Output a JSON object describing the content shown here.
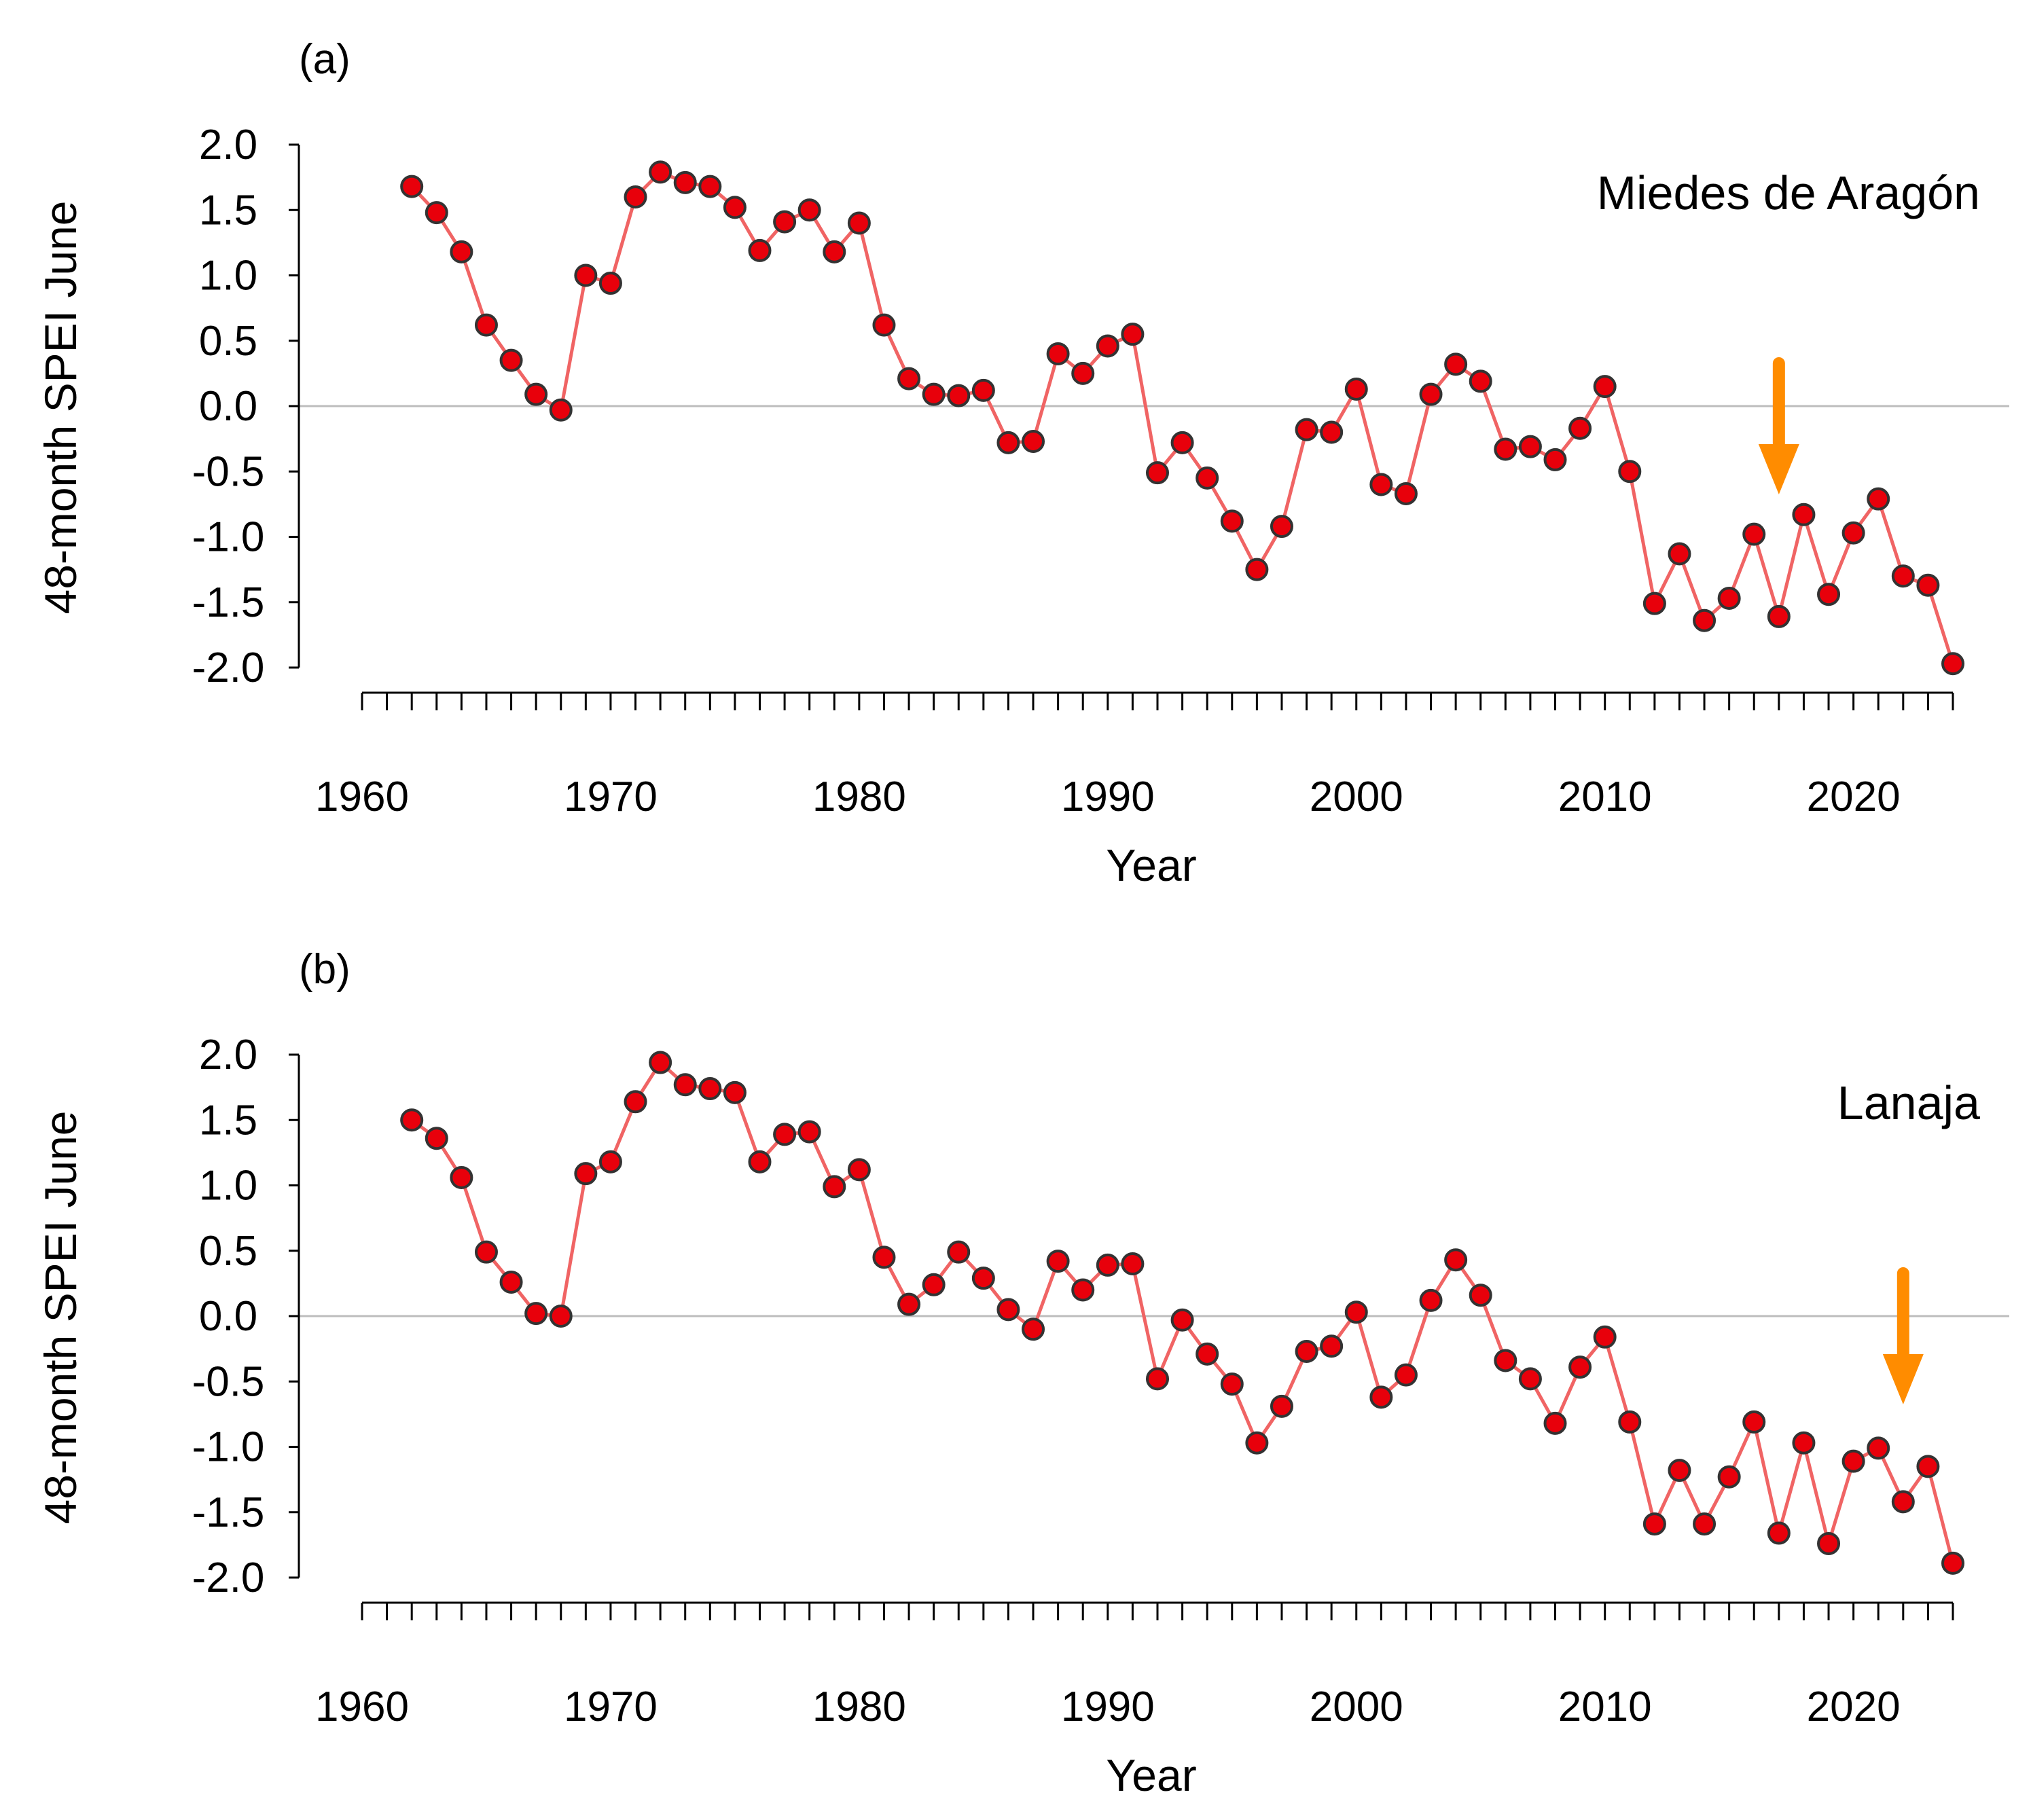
{
  "colors": {
    "line": "#f06464",
    "marker_fill": "#e8000b",
    "marker_edge": "#333333",
    "zero_line": "#bdbdbd",
    "arrow": "#ff8c00",
    "axis": "#000000"
  },
  "chart_data": [
    {
      "type": "line",
      "panel_label": "(a)",
      "site": "Miedes de Aragón",
      "xlabel": "Year",
      "ylabel": "48-month SPEI June",
      "ylim": [
        -2.0,
        2.0
      ],
      "yticks": [
        "-2.0",
        "-1.5",
        "-1.0",
        "-0.5",
        "0.0",
        "0.5",
        "1.0",
        "1.5",
        "2.0"
      ],
      "xlim": [
        1960,
        2024
      ],
      "xticks": [
        "1960",
        "1970",
        "1980",
        "1990",
        "2000",
        "2010",
        "2020"
      ],
      "reference_line_y": 0,
      "arrow_year": 2017,
      "x": [
        1962,
        1963,
        1964,
        1965,
        1966,
        1967,
        1968,
        1969,
        1970,
        1971,
        1972,
        1973,
        1974,
        1975,
        1976,
        1977,
        1978,
        1979,
        1980,
        1981,
        1982,
        1983,
        1984,
        1985,
        1986,
        1987,
        1988,
        1989,
        1990,
        1991,
        1992,
        1993,
        1994,
        1995,
        1996,
        1997,
        1998,
        1999,
        2000,
        2001,
        2002,
        2003,
        2004,
        2005,
        2006,
        2007,
        2008,
        2009,
        2010,
        2011,
        2012,
        2013,
        2014,
        2015,
        2016,
        2017,
        2018,
        2019,
        2020,
        2021,
        2022,
        2023,
        2024
      ],
      "y": [
        1.68,
        1.48,
        1.18,
        0.62,
        0.35,
        0.09,
        -0.03,
        1.0,
        0.94,
        1.6,
        1.79,
        1.71,
        1.68,
        1.52,
        1.19,
        1.41,
        1.5,
        1.18,
        1.4,
        0.62,
        0.21,
        0.09,
        0.08,
        0.12,
        -0.28,
        -0.27,
        0.4,
        0.25,
        0.46,
        0.55,
        -0.51,
        -0.28,
        -0.55,
        -0.88,
        -1.25,
        -0.92,
        -0.18,
        -0.2,
        0.13,
        -0.6,
        -0.67,
        0.09,
        0.32,
        0.19,
        -0.33,
        -0.31,
        -0.41,
        -0.17,
        0.15,
        -0.5,
        -1.51,
        -1.13,
        -1.64,
        -1.47,
        -0.98,
        -1.61,
        -0.83,
        -1.44,
        -0.97,
        -0.71,
        -1.3,
        -1.37,
        -1.97
      ]
    },
    {
      "type": "line",
      "panel_label": "(b)",
      "site": "Lanaja",
      "xlabel": "Year",
      "ylabel": "48-month SPEI June",
      "ylim": [
        -2.0,
        2.0
      ],
      "yticks": [
        "-2.0",
        "-1.5",
        "-1.0",
        "-0.5",
        "0.0",
        "0.5",
        "1.0",
        "1.5",
        "2.0"
      ],
      "xlim": [
        1960,
        2024
      ],
      "xticks": [
        "1960",
        "1970",
        "1980",
        "1990",
        "2000",
        "2010",
        "2020"
      ],
      "reference_line_y": 0,
      "arrow_year": 2022,
      "x": [
        1962,
        1963,
        1964,
        1965,
        1966,
        1967,
        1968,
        1969,
        1970,
        1971,
        1972,
        1973,
        1974,
        1975,
        1976,
        1977,
        1978,
        1979,
        1980,
        1981,
        1982,
        1983,
        1984,
        1985,
        1986,
        1987,
        1988,
        1989,
        1990,
        1991,
        1992,
        1993,
        1994,
        1995,
        1996,
        1997,
        1998,
        1999,
        2000,
        2001,
        2002,
        2003,
        2004,
        2005,
        2006,
        2007,
        2008,
        2009,
        2010,
        2011,
        2012,
        2013,
        2014,
        2015,
        2016,
        2017,
        2018,
        2019,
        2020,
        2021,
        2022,
        2023,
        2024
      ],
      "y": [
        1.5,
        1.36,
        1.06,
        0.49,
        0.26,
        0.02,
        0.0,
        1.09,
        1.18,
        1.64,
        1.94,
        1.77,
        1.74,
        1.71,
        1.18,
        1.39,
        1.41,
        0.99,
        1.12,
        0.45,
        0.09,
        0.24,
        0.49,
        0.29,
        0.05,
        -0.1,
        0.42,
        0.2,
        0.39,
        0.4,
        -0.48,
        -0.03,
        -0.29,
        -0.52,
        -0.97,
        -0.69,
        -0.27,
        -0.23,
        0.03,
        -0.62,
        -0.45,
        0.12,
        0.43,
        0.16,
        -0.34,
        -0.48,
        -0.82,
        -0.39,
        -0.16,
        -0.81,
        -1.59,
        -1.18,
        -1.59,
        -1.23,
        -0.81,
        -1.66,
        -0.97,
        -1.74,
        -1.11,
        -1.01,
        -1.42,
        -1.15,
        -1.89
      ]
    }
  ]
}
